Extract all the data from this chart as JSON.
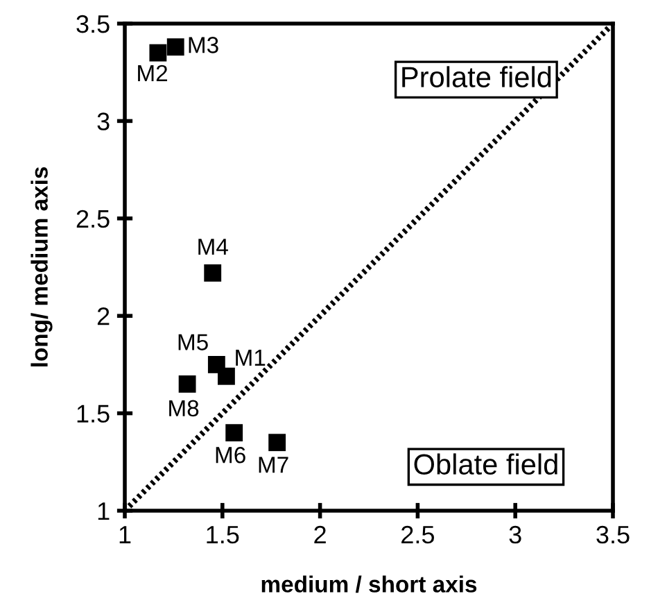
{
  "chart_data": {
    "type": "scatter",
    "xlabel": "medium / short axis",
    "ylabel": "long/ medium axis",
    "xlim": [
      1,
      3.5
    ],
    "ylim": [
      1,
      3.5
    ],
    "xticks": [
      1,
      1.5,
      2,
      2.5,
      3,
      {
        "value": 3.5,
        "label": "3.5"
      }
    ],
    "yticks": [
      1,
      1.5,
      2,
      2.5,
      3,
      3.5
    ],
    "grid": false,
    "series": [
      {
        "marker": "square",
        "color": "#000000",
        "x": [
          1.52,
          1.17,
          1.26,
          1.45,
          1.47,
          1.56,
          1.78,
          1.32
        ],
        "values": [
          1.69,
          3.35,
          3.38,
          2.22,
          1.75,
          1.4,
          1.35,
          1.65
        ],
        "value_labels": [
          "M1",
          "M2",
          "M3",
          "M4",
          "M5",
          "M6",
          "M7",
          "M8"
        ]
      },
      {
        "type": "line",
        "color": "#000000",
        "line_style": "dotted",
        "x": [
          1,
          3.5
        ],
        "values": [
          1,
          3.5
        ]
      }
    ],
    "annotations": [
      "Prolate field",
      "Oblate field"
    ]
  }
}
